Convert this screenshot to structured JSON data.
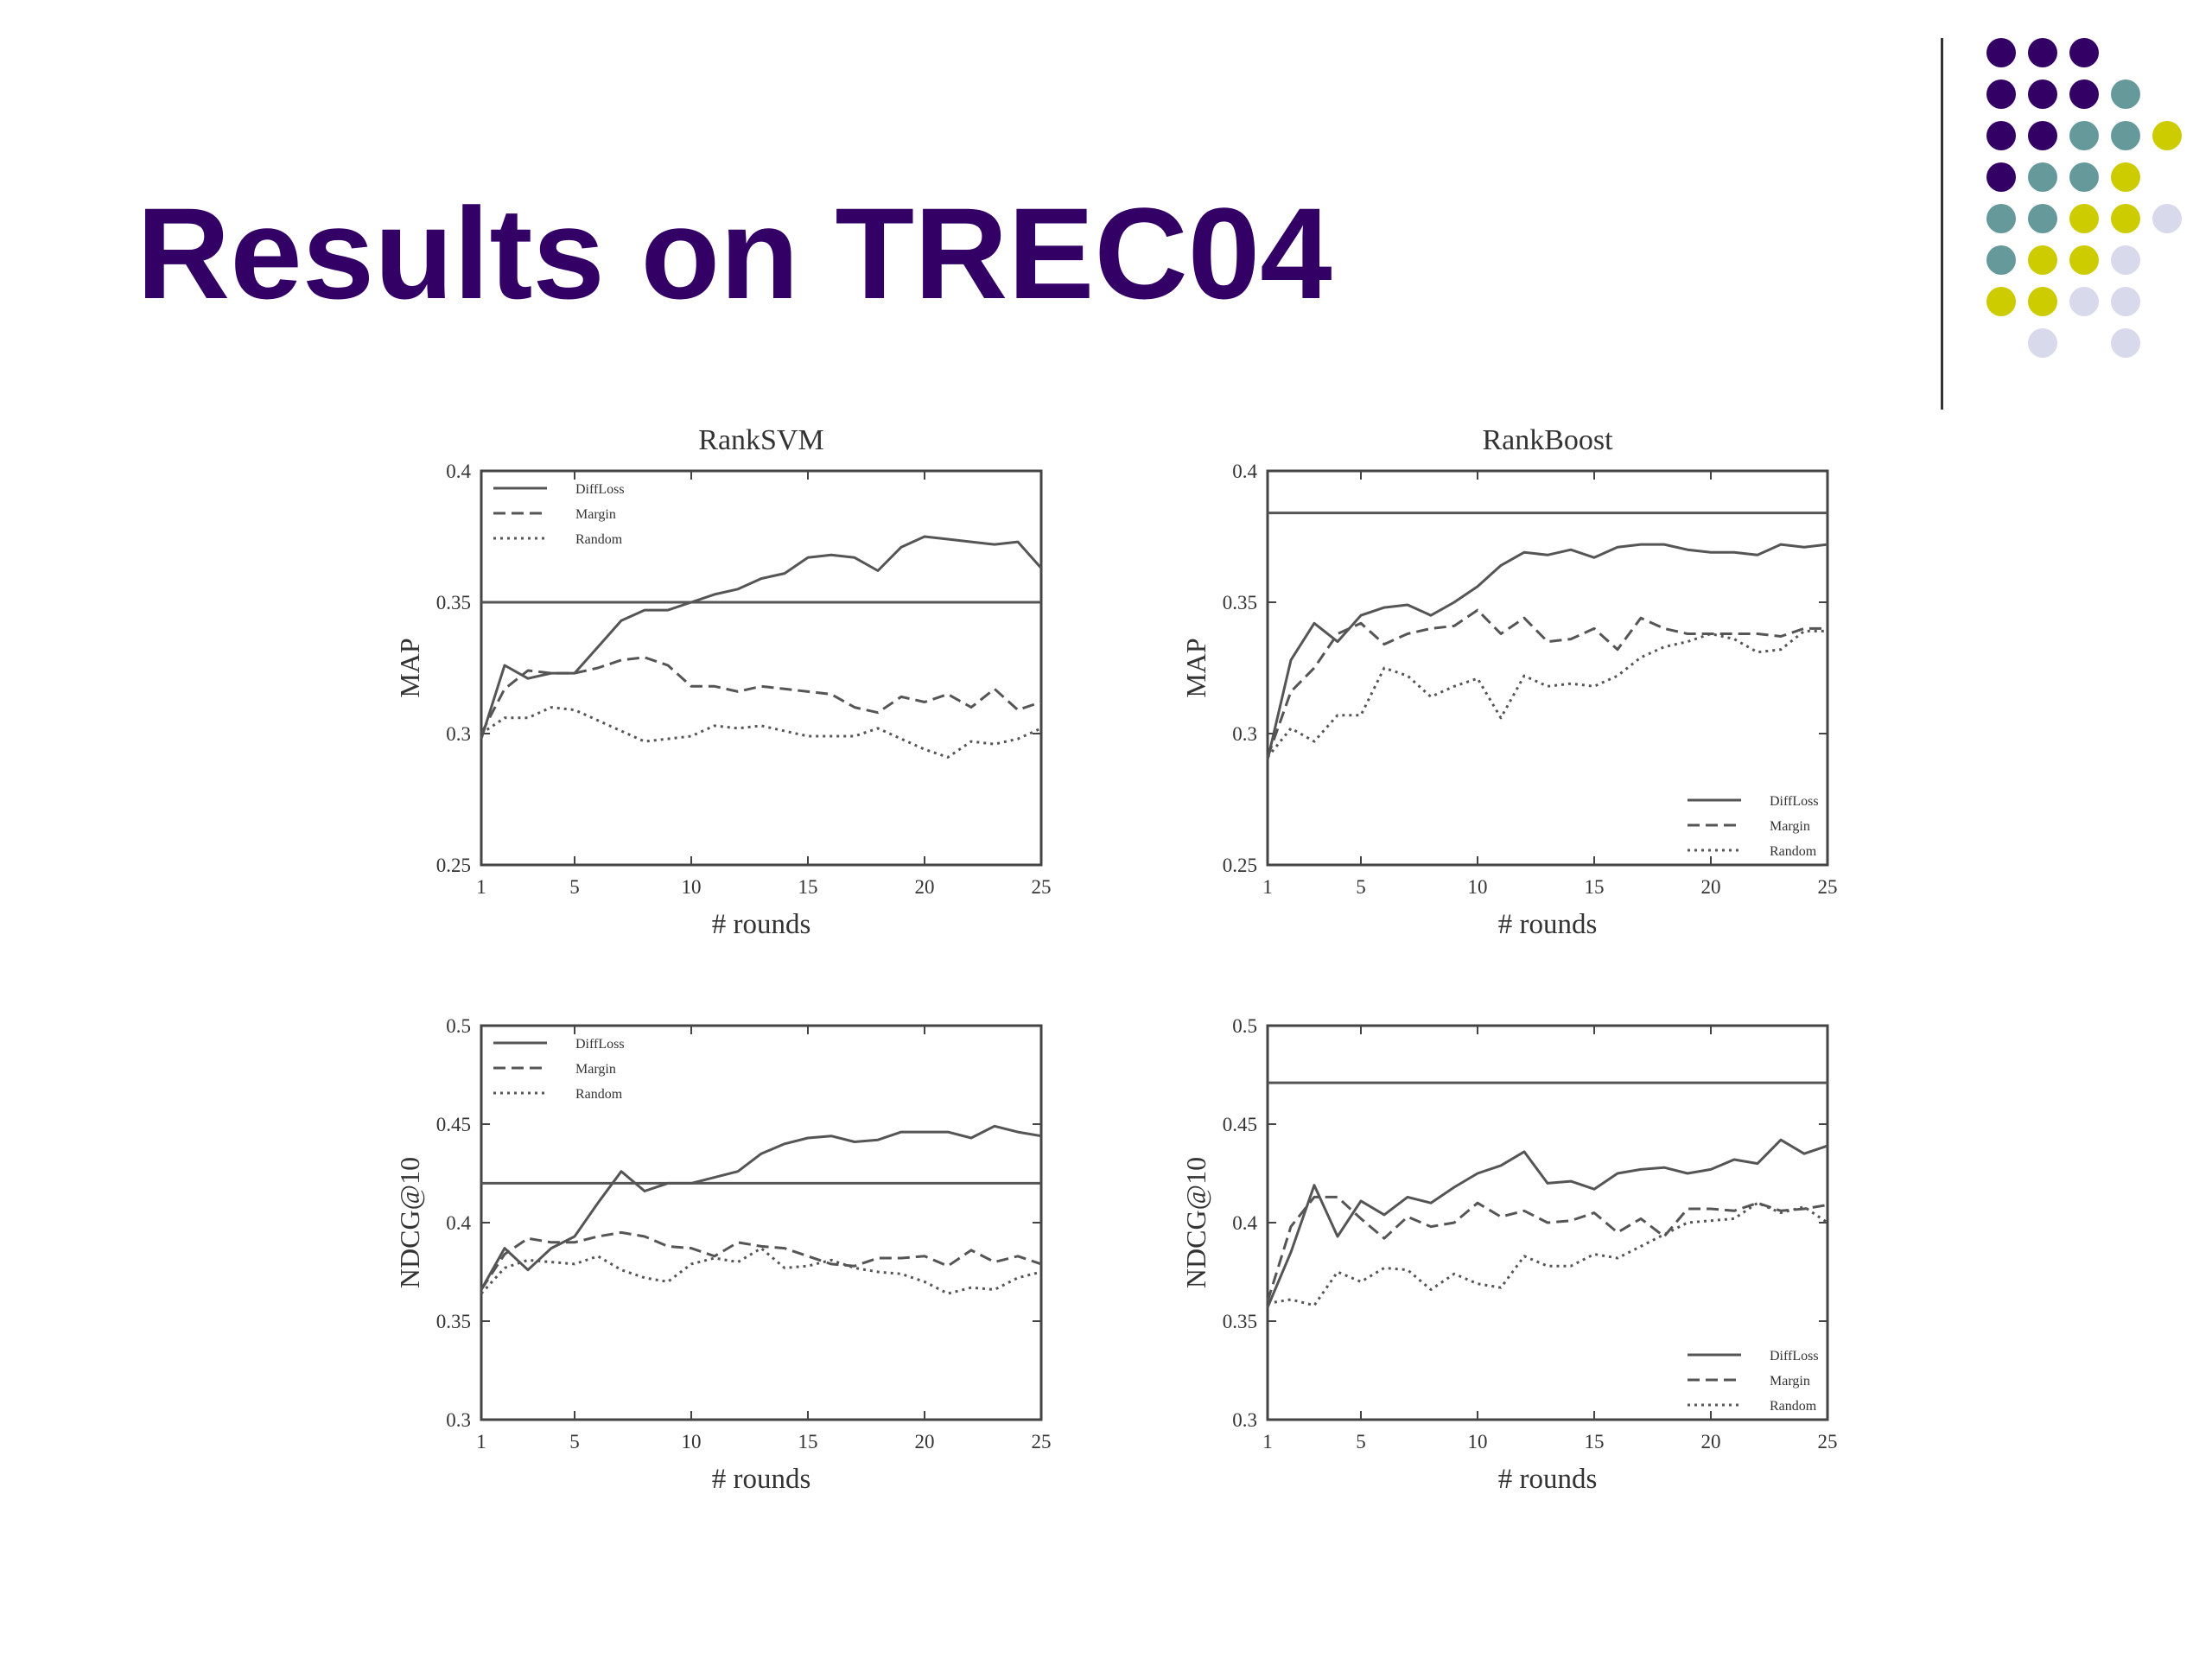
{
  "slide": {
    "title": "Results on TREC04",
    "colors": {
      "title": "#330066",
      "purple": "#330066",
      "teal": "#669999",
      "yellow": "#CCCC00",
      "lavender": "#D9D9EC",
      "line": "#555555"
    },
    "decoration": {
      "name": "dot-grid-logo",
      "rows": [
        [
          "purple",
          "purple",
          "purple",
          null,
          null
        ],
        [
          "purple",
          "purple",
          "purple",
          "teal",
          null
        ],
        [
          "purple",
          "purple",
          "teal",
          "teal",
          "yellow"
        ],
        [
          "purple",
          "teal",
          "teal",
          "yellow",
          null
        ],
        [
          "teal",
          "teal",
          "yellow",
          "yellow",
          "lavender"
        ],
        [
          "teal",
          "yellow",
          "yellow",
          "lavender",
          null
        ],
        [
          "yellow",
          "yellow",
          "lavender",
          "lavender",
          null
        ],
        [
          null,
          "lavender",
          null,
          "lavender",
          null
        ]
      ]
    }
  },
  "chart_data": [
    {
      "id": "svm-map",
      "type": "line",
      "title": "RankSVM",
      "xlabel": "# rounds",
      "ylabel": "MAP",
      "xlim": [
        1,
        25
      ],
      "ylim": [
        0.25,
        0.4
      ],
      "xticks": [
        "1",
        "5",
        "10",
        "15",
        "20",
        "25"
      ],
      "yticks": [
        "0.25",
        "0.3",
        "0.35",
        "0.4"
      ],
      "legend_position": "top-left",
      "baseline": 0.35,
      "x": [
        1,
        2,
        3,
        4,
        5,
        6,
        7,
        8,
        9,
        10,
        11,
        12,
        13,
        14,
        15,
        16,
        17,
        18,
        19,
        20,
        21,
        22,
        23,
        24,
        25
      ],
      "series": [
        {
          "name": "DiffLoss",
          "style": "solid",
          "values": [
            0.298,
            0.326,
            0.321,
            0.323,
            0.323,
            0.333,
            0.343,
            0.347,
            0.347,
            0.35,
            0.353,
            0.355,
            0.359,
            0.361,
            0.367,
            0.368,
            0.367,
            0.362,
            0.371,
            0.375,
            0.374,
            0.373,
            0.372,
            0.373,
            0.363
          ]
        },
        {
          "name": "Margin",
          "style": "dashed",
          "values": [
            0.3,
            0.317,
            0.324,
            0.323,
            0.323,
            0.325,
            0.328,
            0.329,
            0.326,
            0.318,
            0.318,
            0.316,
            0.318,
            0.317,
            0.316,
            0.315,
            0.31,
            0.308,
            0.314,
            0.312,
            0.315,
            0.31,
            0.317,
            0.309,
            0.312
          ]
        },
        {
          "name": "Random",
          "style": "dotted",
          "values": [
            0.3,
            0.306,
            0.306,
            0.31,
            0.309,
            0.305,
            0.301,
            0.297,
            0.298,
            0.299,
            0.303,
            0.302,
            0.303,
            0.301,
            0.299,
            0.299,
            0.299,
            0.302,
            0.298,
            0.294,
            0.291,
            0.297,
            0.296,
            0.298,
            0.302
          ]
        }
      ]
    },
    {
      "id": "boost-map",
      "type": "line",
      "title": "RankBoost",
      "xlabel": "# rounds",
      "ylabel": "MAP",
      "xlim": [
        1,
        25
      ],
      "ylim": [
        0.25,
        0.4
      ],
      "xticks": [
        "1",
        "5",
        "10",
        "15",
        "20",
        "25"
      ],
      "yticks": [
        "0.25",
        "0.3",
        "0.35",
        "0.4"
      ],
      "legend_position": "bottom-right",
      "baseline": 0.384,
      "x": [
        1,
        2,
        3,
        4,
        5,
        6,
        7,
        8,
        9,
        10,
        11,
        12,
        13,
        14,
        15,
        16,
        17,
        18,
        19,
        20,
        21,
        22,
        23,
        24,
        25
      ],
      "series": [
        {
          "name": "DiffLoss",
          "style": "solid",
          "values": [
            0.29,
            0.328,
            0.342,
            0.335,
            0.345,
            0.348,
            0.349,
            0.345,
            0.35,
            0.356,
            0.364,
            0.369,
            0.368,
            0.37,
            0.367,
            0.371,
            0.372,
            0.372,
            0.37,
            0.369,
            0.369,
            0.368,
            0.372,
            0.371,
            0.372
          ]
        },
        {
          "name": "Margin",
          "style": "dashed",
          "values": [
            0.291,
            0.316,
            0.325,
            0.338,
            0.342,
            0.334,
            0.338,
            0.34,
            0.341,
            0.347,
            0.338,
            0.344,
            0.335,
            0.336,
            0.34,
            0.332,
            0.344,
            0.34,
            0.338,
            0.338,
            0.338,
            0.338,
            0.337,
            0.34,
            0.34
          ]
        },
        {
          "name": "Random",
          "style": "dotted",
          "values": [
            0.291,
            0.302,
            0.297,
            0.307,
            0.307,
            0.325,
            0.322,
            0.314,
            0.318,
            0.321,
            0.306,
            0.322,
            0.318,
            0.319,
            0.318,
            0.322,
            0.329,
            0.333,
            0.335,
            0.338,
            0.336,
            0.331,
            0.332,
            0.339,
            0.339
          ]
        }
      ]
    },
    {
      "id": "svm-ndcg",
      "type": "line",
      "title": "",
      "xlabel": "# rounds",
      "ylabel": "NDCG@10",
      "xlim": [
        1,
        25
      ],
      "ylim": [
        0.3,
        0.5
      ],
      "xticks": [
        "1",
        "5",
        "10",
        "15",
        "20",
        "25"
      ],
      "yticks": [
        "0.3",
        "0.35",
        "0.4",
        "0.45",
        "0.5"
      ],
      "legend_position": "top-left",
      "baseline": 0.42,
      "x": [
        1,
        2,
        3,
        4,
        5,
        6,
        7,
        8,
        9,
        10,
        11,
        12,
        13,
        14,
        15,
        16,
        17,
        18,
        19,
        20,
        21,
        22,
        23,
        24,
        25
      ],
      "series": [
        {
          "name": "DiffLoss",
          "style": "solid",
          "values": [
            0.366,
            0.387,
            0.376,
            0.387,
            0.393,
            0.41,
            0.426,
            0.416,
            0.42,
            0.42,
            0.423,
            0.426,
            0.435,
            0.44,
            0.443,
            0.444,
            0.441,
            0.442,
            0.446,
            0.446,
            0.446,
            0.443,
            0.449,
            0.446,
            0.444
          ]
        },
        {
          "name": "Margin",
          "style": "dashed",
          "values": [
            0.366,
            0.384,
            0.392,
            0.39,
            0.39,
            0.393,
            0.395,
            0.393,
            0.388,
            0.387,
            0.383,
            0.39,
            0.388,
            0.387,
            0.383,
            0.379,
            0.378,
            0.382,
            0.382,
            0.383,
            0.378,
            0.386,
            0.38,
            0.383,
            0.379
          ]
        },
        {
          "name": "Random",
          "style": "dotted",
          "values": [
            0.364,
            0.377,
            0.381,
            0.38,
            0.379,
            0.383,
            0.376,
            0.372,
            0.37,
            0.379,
            0.382,
            0.38,
            0.387,
            0.377,
            0.378,
            0.381,
            0.377,
            0.375,
            0.374,
            0.37,
            0.364,
            0.367,
            0.366,
            0.372,
            0.375
          ]
        }
      ]
    },
    {
      "id": "boost-ndcg",
      "type": "line",
      "title": "",
      "xlabel": "# rounds",
      "ylabel": "NDCG@10",
      "xlim": [
        1,
        25
      ],
      "ylim": [
        0.3,
        0.5
      ],
      "xticks": [
        "1",
        "5",
        "10",
        "15",
        "20",
        "25"
      ],
      "yticks": [
        "0.3",
        "0.35",
        "0.4",
        "0.45",
        "0.5"
      ],
      "legend_position": "bottom-right",
      "baseline": 0.471,
      "x": [
        1,
        2,
        3,
        4,
        5,
        6,
        7,
        8,
        9,
        10,
        11,
        12,
        13,
        14,
        15,
        16,
        17,
        18,
        19,
        20,
        21,
        22,
        23,
        24,
        25
      ],
      "series": [
        {
          "name": "DiffLoss",
          "style": "solid",
          "values": [
            0.357,
            0.385,
            0.419,
            0.393,
            0.411,
            0.404,
            0.413,
            0.41,
            0.418,
            0.425,
            0.429,
            0.436,
            0.42,
            0.421,
            0.417,
            0.425,
            0.427,
            0.428,
            0.425,
            0.427,
            0.432,
            0.43,
            0.442,
            0.435,
            0.439
          ]
        },
        {
          "name": "Margin",
          "style": "dashed",
          "values": [
            0.36,
            0.398,
            0.413,
            0.413,
            0.402,
            0.392,
            0.403,
            0.398,
            0.4,
            0.41,
            0.403,
            0.406,
            0.4,
            0.401,
            0.405,
            0.395,
            0.402,
            0.393,
            0.407,
            0.407,
            0.406,
            0.41,
            0.406,
            0.407,
            0.409
          ]
        },
        {
          "name": "Random",
          "style": "dotted",
          "values": [
            0.359,
            0.361,
            0.358,
            0.375,
            0.37,
            0.377,
            0.376,
            0.366,
            0.374,
            0.369,
            0.367,
            0.383,
            0.378,
            0.378,
            0.384,
            0.382,
            0.388,
            0.394,
            0.4,
            0.401,
            0.402,
            0.41,
            0.405,
            0.408,
            0.4
          ]
        }
      ]
    }
  ]
}
